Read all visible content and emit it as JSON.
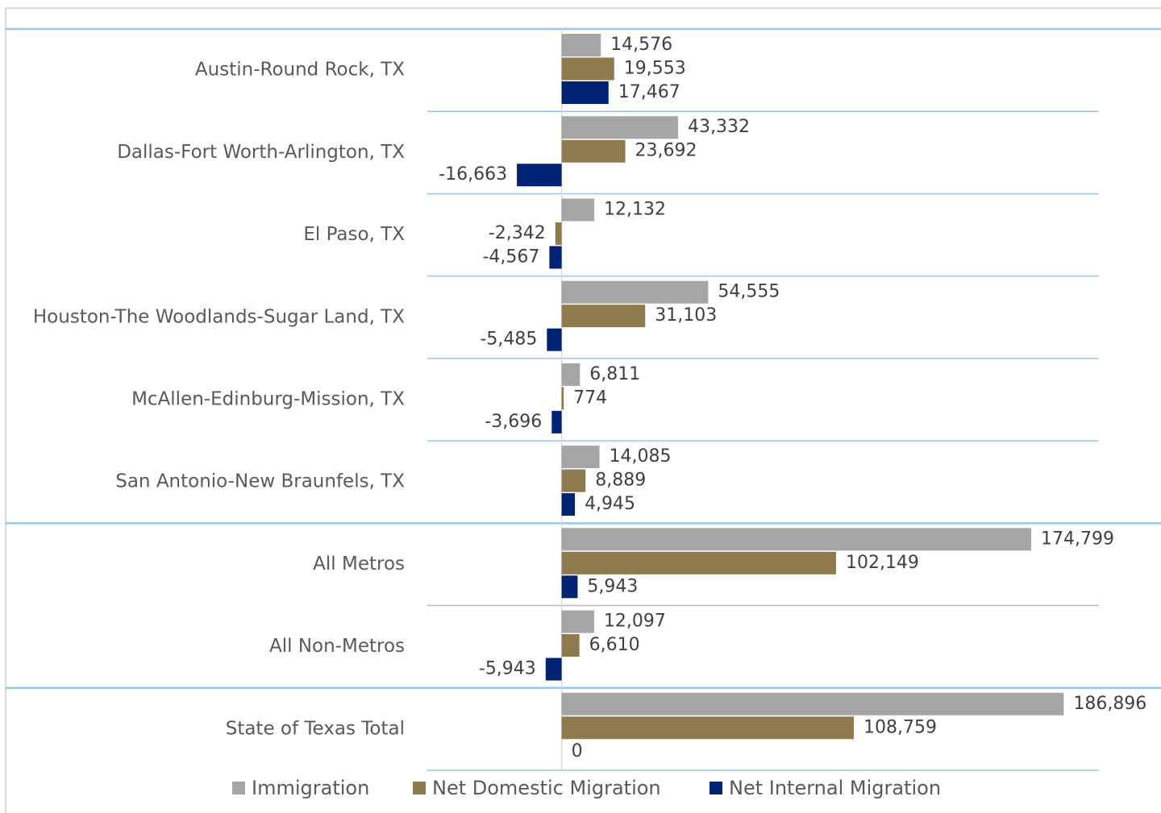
{
  "chart_data": {
    "type": "hbar",
    "categories": [
      "Austin-Round Rock, TX",
      "Dallas-Fort Worth-Arlington, TX",
      "El Paso, TX",
      "Houston-The Woodlands-Sugar Land, TX",
      "McAllen-Edinburg-Mission, TX",
      "San Antonio-New Braunfels, TX",
      "All Metros",
      "All Non-Metros",
      "State of Texas Total"
    ],
    "series": [
      {
        "name": "Immigration",
        "color": "#a5a5a5",
        "values": [
          14576,
          43332,
          12132,
          54555,
          6811,
          14085,
          174799,
          12097,
          186896
        ],
        "value_labels": [
          "14,576",
          "43,332",
          "12,132",
          "54,555",
          "6,811",
          "14,085",
          "174,799",
          "12,097",
          "186,896"
        ]
      },
      {
        "name": "Net Domestic Migration",
        "color": "#8e7a4c",
        "values": [
          19553,
          23692,
          -2342,
          31103,
          774,
          8889,
          102149,
          6610,
          108759
        ],
        "value_labels": [
          "19,553",
          "23,692",
          "-2,342",
          "31,103",
          "774",
          "8,889",
          "102,149",
          "6,610",
          "108,759"
        ]
      },
      {
        "name": "Net Internal Migration",
        "color": "#002473",
        "values": [
          17467,
          -16663,
          -4567,
          -5485,
          -3696,
          4945,
          5943,
          -5943,
          0
        ],
        "value_labels": [
          "17,467",
          "-16,663",
          "-4,567",
          "-5,485",
          "-3,696",
          "4,945",
          "5,943",
          "-5,943",
          "0"
        ]
      }
    ],
    "xlim": [
      -50000,
      200000
    ],
    "legend": "bottom"
  }
}
